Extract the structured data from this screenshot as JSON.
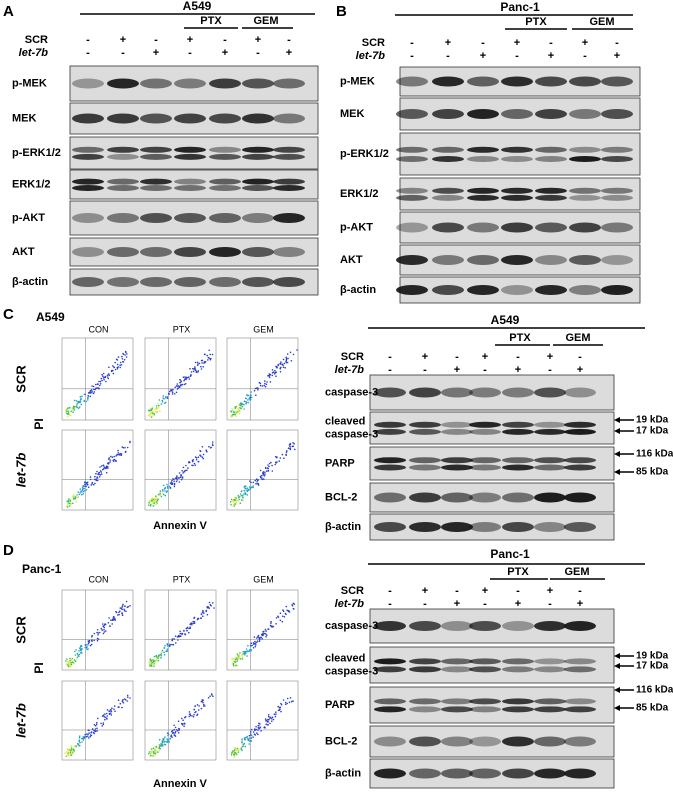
{
  "panels": [
    {
      "letter": "A",
      "blot": {
        "cell_line": "A549",
        "groups": [
          "PTX",
          "GEM"
        ],
        "treatments": [
          {
            "name": "SCR",
            "signs": [
              "-",
              "+",
              "-",
              "+",
              "-",
              "+",
              "-"
            ]
          },
          {
            "name": "let-7b",
            "signs": [
              "-",
              "-",
              "+",
              "-",
              "+",
              "-",
              "+"
            ]
          }
        ],
        "blots": [
          [
            "p-MEK"
          ],
          [
            "MEK"
          ],
          [
            "p-ERK1/2"
          ],
          [
            "ERK1/2"
          ],
          [
            "p-AKT"
          ],
          [
            "AKT"
          ],
          [
            "β-actin"
          ]
        ],
        "markers": []
      }
    },
    {
      "letter": "B",
      "blot": {
        "cell_line": "Panc-1",
        "groups": [
          "PTX",
          "GEM"
        ],
        "treatments": [
          {
            "name": "SCR",
            "signs": [
              "-",
              "+",
              "-",
              "+",
              "-",
              "+",
              "-"
            ]
          },
          {
            "name": "let-7b",
            "signs": [
              "-",
              "-",
              "+",
              "-",
              "+",
              "-",
              "+"
            ]
          }
        ],
        "blots": [
          [
            "p-MEK"
          ],
          [
            "MEK"
          ],
          [
            "p-ERK1/2"
          ],
          [
            "ERK1/2"
          ],
          [
            "p-AKT"
          ],
          [
            "AKT"
          ],
          [
            "β-actin"
          ]
        ],
        "markers": []
      }
    },
    {
      "letter": "C",
      "flow": {
        "cell_line": "A549",
        "conditions": [
          "CON",
          "PTX",
          "GEM"
        ],
        "rows": [
          "SCR",
          "let-7b"
        ],
        "y_label": "PI",
        "x_label": "Annexin V"
      },
      "blot": {
        "cell_line": "A549",
        "groups": [
          "PTX",
          "GEM"
        ],
        "treatments": [
          {
            "name": "SCR",
            "signs": [
              "-",
              "+",
              "-",
              "+",
              "-",
              "+",
              "-"
            ]
          },
          {
            "name": "let-7b",
            "signs": [
              "-",
              "-",
              "+",
              "-",
              "+",
              "-",
              "+"
            ]
          }
        ],
        "blots": [
          [
            "caspase-3"
          ],
          [
            "cleaved",
            "caspase-3"
          ],
          [
            "PARP"
          ],
          [
            "BCL-2"
          ],
          [
            "β-actin"
          ]
        ],
        "markers": [
          "19 kDa",
          "17 kDa",
          "116 kDa",
          "85 kDa"
        ]
      }
    },
    {
      "letter": "D",
      "flow": {
        "cell_line": "Panc-1",
        "conditions": [
          "CON",
          "PTX",
          "GEM"
        ],
        "rows": [
          "SCR",
          "let-7b"
        ],
        "y_label": "PI",
        "x_label": "Annexin V"
      },
      "blot": {
        "cell_line": "Panc-1",
        "groups": [
          "PTX",
          "GEM"
        ],
        "treatments": [
          {
            "name": "SCR",
            "signs": [
              "-",
              "+",
              "-",
              "+",
              "-",
              "+",
              "-"
            ]
          },
          {
            "name": "let-7b",
            "signs": [
              "-",
              "-",
              "+",
              "-",
              "+",
              "-",
              "+"
            ]
          }
        ],
        "blots": [
          [
            "caspase-3"
          ],
          [
            "cleaved",
            "caspase-3"
          ],
          [
            "PARP"
          ],
          [
            "BCL-2"
          ],
          [
            "β-actin"
          ]
        ],
        "markers": [
          "19 kDa",
          "17 kDa",
          "116 kDa",
          "85 kDa"
        ]
      }
    }
  ]
}
